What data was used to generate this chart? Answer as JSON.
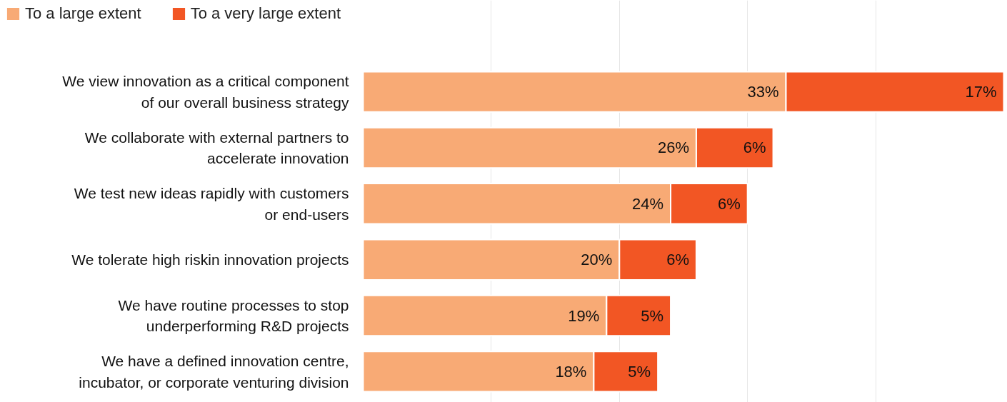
{
  "chart_data": {
    "type": "bar",
    "orientation": "horizontal",
    "stacked": true,
    "categories": [
      "We view innovation as a critical component\nof our overall business strategy",
      "We collaborate with external partners to\naccelerate innovation",
      "We test new ideas rapidly with customers\nor end-users",
      "We tolerate high riskin innovation projects",
      "We have routine processes to stop\nunderperforming R&D projects",
      "We have a defined innovation centre,\nincubator, or corporate venturing division"
    ],
    "series": [
      {
        "name": "To a large extent",
        "color": "#f8aa75",
        "values": [
          33,
          26,
          24,
          20,
          19,
          18
        ],
        "value_labels": [
          "33%",
          "26%",
          "24%",
          "20%",
          "19%",
          "18%"
        ]
      },
      {
        "name": "To a very large extent",
        "color": "#f25624",
        "values": [
          17,
          6,
          6,
          6,
          5,
          5
        ],
        "value_labels": [
          "17%",
          "6%",
          "6%",
          "6%",
          "5%",
          "5%"
        ]
      }
    ],
    "xlim": [
      0,
      50
    ],
    "xticks": [
      {
        "value": 10,
        "label": null
      },
      {
        "value": 20,
        "label": null
      },
      {
        "value": 30,
        "label": null
      },
      {
        "value": 40,
        "label": null
      }
    ],
    "tick_labels": "y",
    "grid": "x",
    "legend": "top left",
    "data_labels": true
  }
}
